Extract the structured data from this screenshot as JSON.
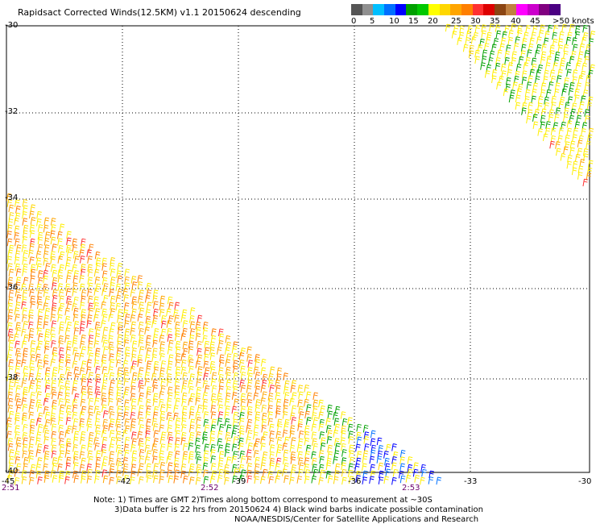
{
  "title": "Rapidsact Corrected Winds(12.5KM) v1.1 20150624 descending",
  "legend": {
    "colors": [
      "#555555",
      "#909090",
      "#00bfff",
      "#0070ff",
      "#0000ff",
      "#00a000",
      "#00c800",
      "#ffff00",
      "#ffd700",
      "#ffa500",
      "#ff7f00",
      "#ff3030",
      "#dd0000",
      "#8b4513",
      "#c08040",
      "#ff00ff",
      "#cc00cc",
      "#800080",
      "#4b0082"
    ],
    "ticks": [
      "0",
      "5",
      "10",
      "15",
      "20",
      "25",
      "30",
      "35",
      "40",
      "45",
      ">50 knots"
    ]
  },
  "axes": {
    "y_labels": [
      "-30",
      "-32",
      "-34",
      "-36",
      "-38",
      "-40"
    ],
    "x_labels": [
      "-45",
      "-42",
      "-39",
      "-36",
      "-33",
      "-30"
    ]
  },
  "times": [
    "2:51",
    "2:52",
    "2:53"
  ],
  "notes": {
    "line1": "Note: 1) Times are GMT 2)Times along bottom correspond to measurement at ~30S",
    "line2": "3)Data buffer is 22 hrs from 20150624 4) Black wind barbs indicate possible contamination",
    "line3": "NOAA/NESDIS/Center for Satellite Applications and Research"
  }
}
